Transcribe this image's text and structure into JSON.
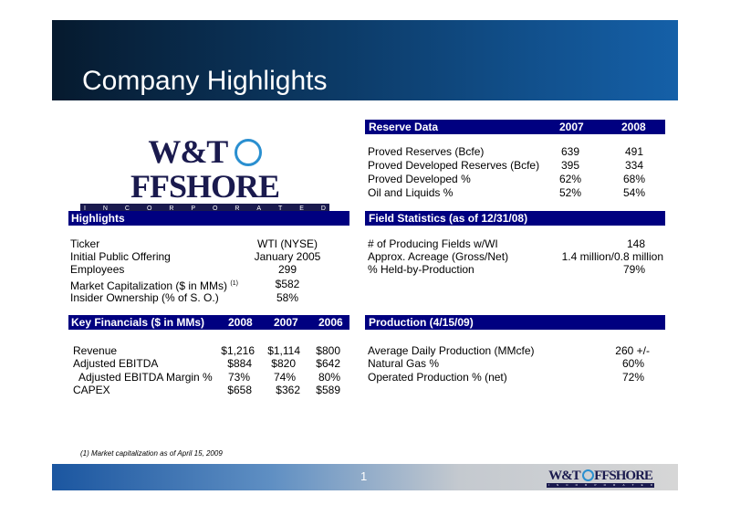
{
  "page_title": "Company Highlights",
  "logo": {
    "word": "W&T OFFSHORE",
    "subtitle": "INCORPORATED"
  },
  "reserve": {
    "header": {
      "label": "Reserve Data",
      "y1": "2007",
      "y2": "2008"
    },
    "rows": [
      {
        "label": "Proved Reserves (Bcfe)",
        "v1": "639",
        "v2": "491"
      },
      {
        "label": "Proved Developed Reserves (Bcfe)",
        "v1": "395",
        "v2": "334"
      },
      {
        "label": "Proved Developed %",
        "v1": "62%",
        "v2": "68%"
      },
      {
        "label": "Oil and Liquids %",
        "v1": "52%",
        "v2": "54%"
      }
    ]
  },
  "highlights": {
    "header": "Highlights",
    "rows": [
      {
        "label": "Ticker",
        "value": "WTI (NYSE)"
      },
      {
        "label": "Initial Public Offering",
        "value": "January 2005"
      },
      {
        "label": "Employees",
        "value": "299"
      },
      {
        "label": "Market Capitalization ($ in MMs)",
        "sup": "(1)",
        "value": "$582"
      },
      {
        "label": "Insider Ownership (% of S. O.)",
        "value": "58%"
      }
    ]
  },
  "field": {
    "header": "Field Statistics (as of 12/31/08)",
    "rows": [
      {
        "label": "# of Producing Fields w/WI",
        "value": "148"
      },
      {
        "label": "Approx. Acreage (Gross/Net)",
        "value": "1.4 million/0.8 million"
      },
      {
        "label": "% Held-by-Production",
        "value": "79%"
      }
    ]
  },
  "financials": {
    "header": {
      "label": "Key Financials ($ in MMs)",
      "y1": "2008",
      "y2": "2007",
      "y3": "2006"
    },
    "rows": [
      {
        "label": "Revenue",
        "v1": "$1,216",
        "v2": "$1,114",
        "v3": "$800"
      },
      {
        "label": "Adjusted EBITDA",
        "v1": "$884",
        "v2": "$820",
        "v3": "$642"
      },
      {
        "label": "Adjusted EBITDA Margin %",
        "v1": "73%",
        "v2": "74%",
        "v3": "80%"
      },
      {
        "label": "CAPEX",
        "v1": "$658",
        "v2": "$362",
        "v3": "$589"
      }
    ]
  },
  "production": {
    "header": "Production (4/15/09)",
    "rows": [
      {
        "label": "Average Daily Production (MMcfe)",
        "value": "260 +/-"
      },
      {
        "label": "Natural Gas %",
        "value": "60%"
      },
      {
        "label": "Operated Production % (net)",
        "value": "72%"
      }
    ]
  },
  "footnote": "(1) Market capitalization as of  April 15, 2009",
  "page_number": "1",
  "colors": {
    "section_bar": "#000080",
    "logo_navy": "#1a1a4e",
    "logo_ring": "#2a8fd0"
  }
}
